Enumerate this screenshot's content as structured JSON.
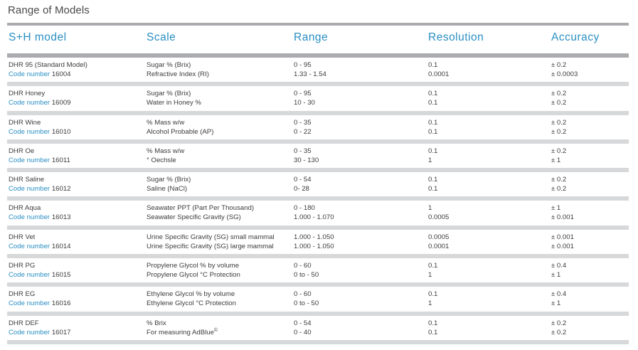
{
  "title": "Range of Models",
  "columns": {
    "model": "S+H model",
    "scale": "Scale",
    "range": "Range",
    "resolution": "Resolution",
    "accuracy": "Accuracy"
  },
  "code_label": "Code number",
  "rows": [
    {
      "model": "DHR 95 (Standard Model)",
      "code": "16004",
      "scale": [
        "Sugar % (Brix)",
        "Refractive Index (RI)"
      ],
      "range": [
        "0 - 95",
        "1.33 - 1.54"
      ],
      "resolution": [
        "0.1",
        "0.0001"
      ],
      "accuracy": [
        "± 0.2",
        "± 0.0003"
      ]
    },
    {
      "model": "DHR Honey",
      "code": "16009",
      "scale": [
        "Sugar % (Brix)",
        "Water in Honey %"
      ],
      "range": [
        "0 - 95",
        "10 - 30"
      ],
      "resolution": [
        "0.1",
        "0.1"
      ],
      "accuracy": [
        "± 0.2",
        "± 0.2"
      ]
    },
    {
      "model": "DHR Wine",
      "code": "16010",
      "scale": [
        "% Mass w/w",
        "Alcohol Probable (AP)"
      ],
      "range": [
        "0 - 35",
        "0 - 22"
      ],
      "resolution": [
        "0.1",
        "0.1"
      ],
      "accuracy": [
        "± 0.2",
        "± 0.2"
      ]
    },
    {
      "model": "DHR Oe",
      "code": "16011",
      "scale": [
        "% Mass w/w",
        "° Oechsle"
      ],
      "range": [
        "0 - 35",
        "30 - 130"
      ],
      "resolution": [
        "0.1",
        "1"
      ],
      "accuracy": [
        "± 0.2",
        "± 1"
      ]
    },
    {
      "model": "DHR  Saline",
      "code": "16012",
      "scale": [
        "Sugar % (Brix)",
        "Saline (NaCl)"
      ],
      "range": [
        "0 - 54",
        "0- 28"
      ],
      "resolution": [
        "0.1",
        "0.1"
      ],
      "accuracy": [
        "± 0.2",
        "± 0.2"
      ]
    },
    {
      "model": "DHR Aqua",
      "code": "16013",
      "scale": [
        "Seawater PPT (Part Per Thousand)",
        "Seawater Specific Gravity (SG)"
      ],
      "range": [
        "0 - 180",
        "1.000 - 1.070"
      ],
      "resolution": [
        "1",
        "0.0005"
      ],
      "accuracy": [
        "± 1",
        "± 0.001"
      ]
    },
    {
      "model": "DHR Vet",
      "code": "16014",
      "scale": [
        "Urine Specific Gravity (SG) small mammal",
        "Urine Specific Gravity (SG) large mammal"
      ],
      "range": [
        "1.000 - 1.050",
        "1.000 - 1.050"
      ],
      "resolution": [
        "0.0005",
        "0.0001"
      ],
      "accuracy": [
        "± 0.001",
        "± 0.001"
      ]
    },
    {
      "model": "DHR PG",
      "code": "16015",
      "scale": [
        "Propylene Glycol % by volume",
        "Propylene Glycol °C Protection"
      ],
      "range": [
        "0 - 60",
        "0 to - 50"
      ],
      "resolution": [
        "0.1",
        "1"
      ],
      "accuracy": [
        "± 0.4",
        "± 1"
      ]
    },
    {
      "model": "DHR EG",
      "code": "16016",
      "scale": [
        "Ethylene Glycol % by volume",
        "Ethylene Glycol °C Protection"
      ],
      "range": [
        "0 - 60",
        "0 to - 50"
      ],
      "resolution": [
        "0.1",
        "1"
      ],
      "accuracy": [
        "± 0.4",
        "± 1"
      ]
    },
    {
      "model": "DHR DEF",
      "code": "16017",
      "scale": [
        "% Brix",
        "For measuring AdBlue"
      ],
      "scale_mark": "©",
      "range": [
        "0 - 54",
        "0 - 40"
      ],
      "resolution": [
        "0.1",
        "0.1"
      ],
      "accuracy": [
        "± 0.2",
        "± 0.2"
      ]
    }
  ]
}
